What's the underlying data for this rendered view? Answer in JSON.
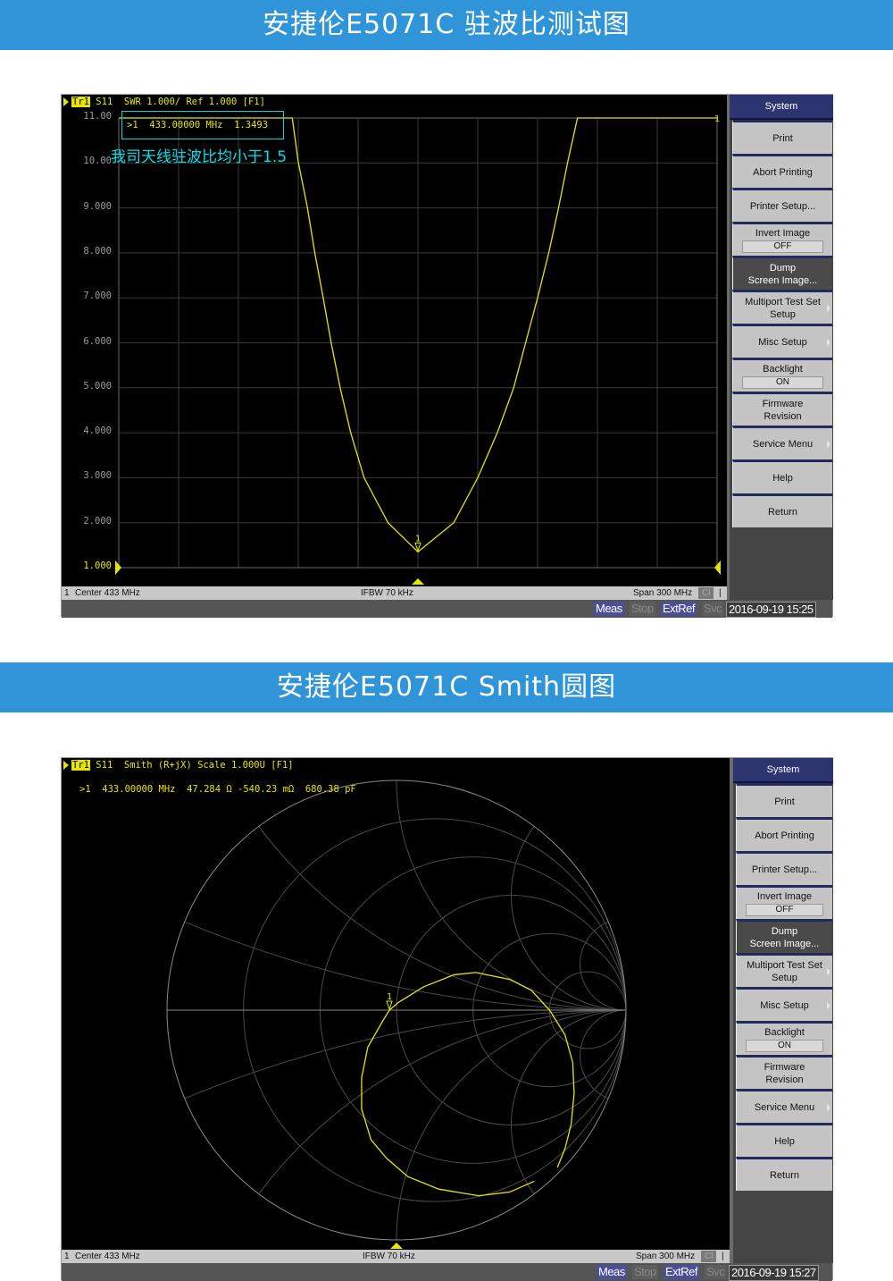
{
  "banner1": {
    "title": "安捷伦E5071C  驻波比测试图"
  },
  "banner2": {
    "title": "安捷伦E5071C  Smith圆图"
  },
  "colors": {
    "banner": "#2f95d8",
    "trace": "#e6e600",
    "annotation": "#00e5ee",
    "softkey_header": "#2c3570"
  },
  "screen1": {
    "header": {
      "trace": "Tr1",
      "text": "S11  SWR 1.000/ Ref 1.000 [F1]"
    },
    "marker_readout": ">1  433.00000 MHz  1.3493",
    "annotation": "我司天线驻波比均小于1.5",
    "marker_label": "1",
    "right_ref_label": "1",
    "status": {
      "channel": "1",
      "center": "Center 433 MHz",
      "ifbw": "IFBW 70 kHz",
      "span": "Span 300 MHz",
      "cl": "Cl",
      "bar": "|"
    },
    "bottom": {
      "meas": "Meas",
      "stop": "Stop",
      "extref": "ExtRef",
      "svc": "Svc",
      "datetime": "2016-09-19 15:25"
    },
    "softkeys": {
      "title": "System",
      "items": [
        {
          "label": "Print"
        },
        {
          "label": "Abort Printing"
        },
        {
          "label": "Printer Setup..."
        },
        {
          "label": "Invert Image",
          "value": "OFF"
        },
        {
          "label": "Dump",
          "sub": "Screen Image...",
          "dark": true
        },
        {
          "label": "Multiport Test Set",
          "sub": "Setup",
          "arrow": true
        },
        {
          "label": "Misc Setup",
          "arrow": true
        },
        {
          "label": "Backlight",
          "value": "ON"
        },
        {
          "label": "Firmware",
          "sub": "Revision"
        },
        {
          "label": "Service Menu",
          "arrow": true
        },
        {
          "label": "Help"
        },
        {
          "label": "Return"
        }
      ]
    }
  },
  "screen2": {
    "header": {
      "trace": "Tr1",
      "text": "S11  Smith (R+jX) Scale 1.000U [F1]"
    },
    "marker_readout": ">1  433.00000 MHz  47.284 Ω -540.23 mΩ  680.38 pF",
    "marker_label": "1",
    "status": {
      "channel": "1",
      "center": "Center 433 MHz",
      "ifbw": "IFBW 70 kHz",
      "span": "Span 300 MHz",
      "cl": "Cl",
      "bar": "|"
    },
    "bottom": {
      "meas": "Meas",
      "stop": "Stop",
      "extref": "ExtRef",
      "svc": "Svc",
      "datetime": "2016-09-19 15:27"
    },
    "softkeys": {
      "title": "System",
      "items": [
        {
          "label": "Print"
        },
        {
          "label": "Abort Printing"
        },
        {
          "label": "Printer Setup..."
        },
        {
          "label": "Invert Image",
          "value": "OFF"
        },
        {
          "label": "Dump",
          "sub": "Screen Image...",
          "dark": true
        },
        {
          "label": "Multiport Test Set",
          "sub": "Setup",
          "arrow": true
        },
        {
          "label": "Misc Setup",
          "arrow": true
        },
        {
          "label": "Backlight",
          "value": "ON"
        },
        {
          "label": "Firmware",
          "sub": "Revision"
        },
        {
          "label": "Service Menu",
          "arrow": true
        },
        {
          "label": "Help"
        },
        {
          "label": "Return"
        }
      ]
    }
  },
  "chart_data": [
    {
      "type": "line",
      "xunit": "MHz",
      "xlim": [
        283,
        583
      ],
      "ylim": [
        1,
        11
      ],
      "grid": true,
      "ytick_labels": [
        "11.00",
        "10.00",
        "9.000",
        "8.000",
        "7.000",
        "6.000",
        "5.000",
        "4.000",
        "3.000",
        "2.000",
        "1.000"
      ],
      "series": [
        {
          "x": [
            283,
            370,
            373,
            377.5,
            381.3,
            385.5,
            389.5,
            394,
            399.3,
            406,
            418,
            433,
            451,
            463,
            472.8,
            481,
            487,
            493,
            498.6,
            503.5,
            508,
            513,
            583
          ],
          "y": [
            11,
            11,
            10.02,
            9.03,
            8.0,
            7.0,
            6.0,
            5.0,
            4.0,
            3.0,
            2.0,
            1.3493,
            2.0,
            3.0,
            4.0,
            5.0,
            6.0,
            7.0,
            8.0,
            9.0,
            10.0,
            11,
            11
          ]
        }
      ],
      "marker": {
        "x": 433,
        "y": 1.3493
      }
    },
    {
      "type": "smith",
      "scale": 1.0,
      "resistance_circles": [
        0.2,
        0.5,
        1,
        2,
        5
      ],
      "reactance_arcs": [
        0.2,
        0.5,
        1,
        2,
        5
      ],
      "series": [
        {
          "gamma_re": [
            0.6,
            0.493,
            0.358,
            0.184,
            0.05,
            -0.044,
            -0.111,
            -0.152,
            -0.152,
            -0.125,
            -0.064,
            -0.031,
            0.009,
            0.117,
            0.251,
            0.345,
            0.493,
            0.587,
            0.667,
            0.734,
            0.768,
            0.774,
            0.761,
            0.734,
            0.701
          ],
          "gamma_im": [
            -0.745,
            -0.792,
            -0.808,
            -0.779,
            -0.725,
            -0.644,
            -0.564,
            -0.43,
            -0.295,
            -0.161,
            -0.054,
            0.0,
            0.034,
            0.101,
            0.154,
            0.164,
            0.134,
            0.087,
            0.0,
            -0.107,
            -0.228,
            -0.362,
            -0.497,
            -0.604,
            -0.685
          ]
        }
      ],
      "marker": {
        "gamma_re": -0.031,
        "gamma_im": 0.0
      }
    }
  ]
}
